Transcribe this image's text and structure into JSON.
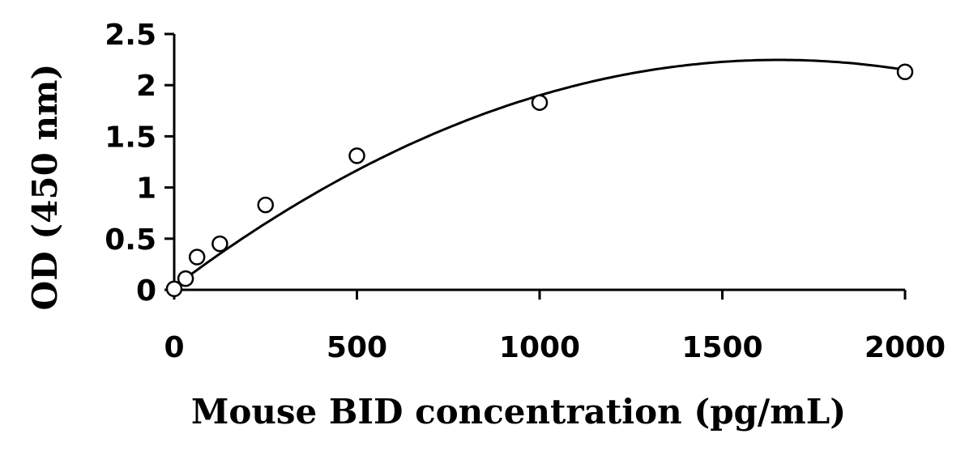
{
  "chart_data": {
    "type": "scatter",
    "title": "",
    "xlabel": "Mouse BID concentration (pg/mL)",
    "ylabel": "OD (450 nm)",
    "xlim": [
      0,
      2000
    ],
    "ylim": [
      0,
      2.5
    ],
    "x_ticks": [
      0,
      500,
      1000,
      1500,
      2000
    ],
    "x_tick_labels": [
      "0",
      "500",
      "1000",
      "1500",
      "2000"
    ],
    "y_ticks": [
      0,
      0.5,
      1,
      1.5,
      2,
      2.5
    ],
    "y_tick_labels": [
      "0",
      "0.5",
      "1",
      "1.5",
      "2",
      "2.5"
    ],
    "grid": false,
    "series": [
      {
        "marker": "open-circle",
        "x": [
          0,
          31.25,
          62.5,
          125,
          250,
          500,
          1000,
          2000
        ],
        "y": [
          0.01,
          0.11,
          0.32,
          0.45,
          0.83,
          1.31,
          1.83,
          2.13
        ]
      }
    ],
    "trendline": {
      "type": "polynomial-2",
      "x_range": [
        0,
        2000
      ],
      "coefficients": [
        0.03,
        0.00268,
        -8.1e-07
      ]
    }
  }
}
